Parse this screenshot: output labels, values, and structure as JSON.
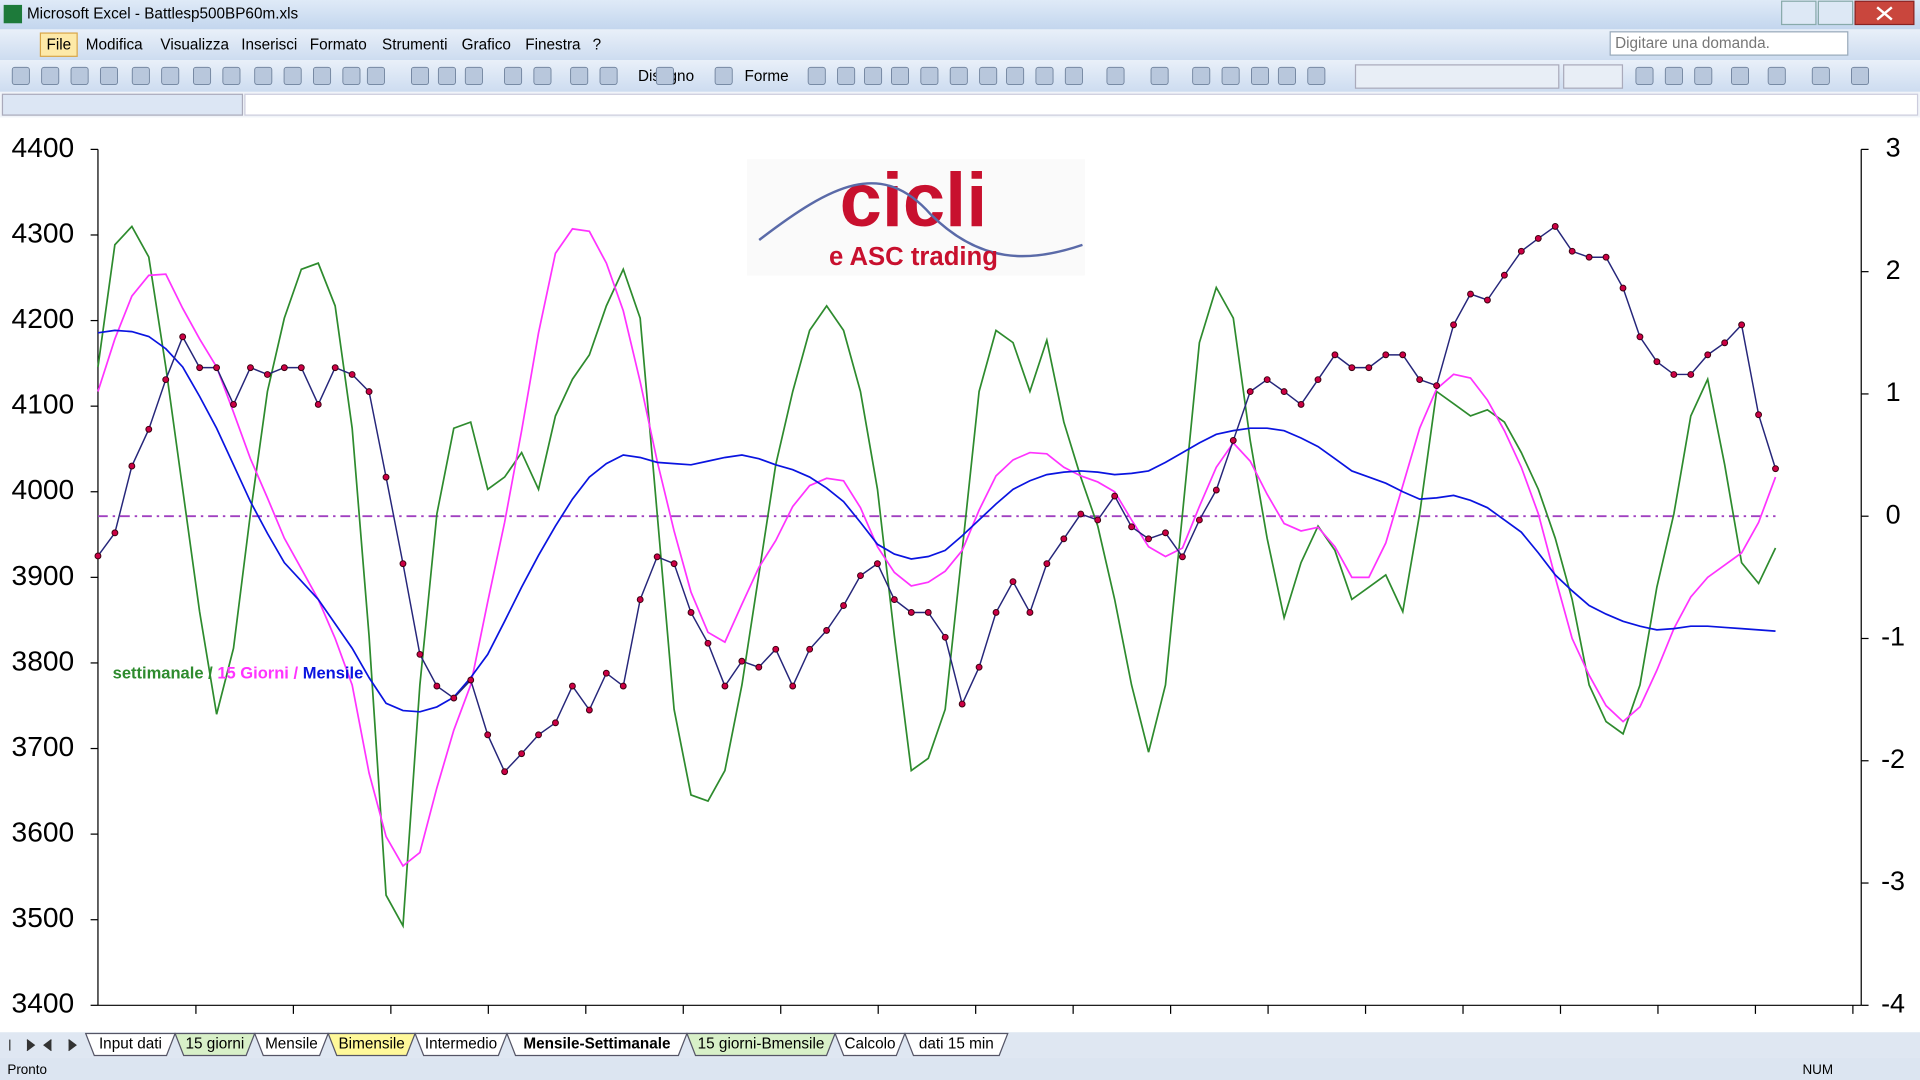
{
  "window": {
    "title": "Microsoft Excel - Battlesp500BP60m.xls"
  },
  "menu": [
    "File",
    "Modifica",
    "Visualizza",
    "Inserisci",
    "Formato",
    "Strumenti",
    "Grafico",
    "Finestra",
    "?"
  ],
  "help_box": "Digitare una domanda.",
  "toolbar": {
    "draw": "Disegno",
    "shapes": "Forme"
  },
  "logo": {
    "title": "cicli",
    "subtitle": "e ASC trading"
  },
  "chart_data": {
    "type": "line",
    "ylim": [
      3400,
      4400
    ],
    "yticks": [
      3400,
      3500,
      3600,
      3700,
      3800,
      3900,
      4000,
      4100,
      4200,
      4300,
      4400
    ],
    "y2lim": [
      -4,
      3
    ],
    "y2ticks": [
      -4,
      -3,
      -2,
      -1,
      0,
      1,
      2,
      3
    ],
    "zero_line": {
      "axis": "y2",
      "value": 0,
      "color": "#a040c0"
    },
    "legend_separator": " / ",
    "series": [
      {
        "name": "settimanale",
        "color": "#2e8b2e",
        "axis": "y2",
        "values": [
          1.22,
          2.22,
          2.37,
          2.12,
          1.22,
          0.22,
          -0.78,
          -1.62,
          -1.08,
          0.02,
          1.02,
          1.62,
          2.02,
          2.07,
          1.72,
          0.72,
          -0.98,
          -3.1,
          -3.35,
          -1.38,
          0.02,
          0.72,
          0.77,
          0.22,
          0.32,
          0.52,
          0.22,
          0.82,
          1.12,
          1.32,
          1.72,
          2.02,
          1.62,
          0.02,
          -1.58,
          -2.28,
          -2.33,
          -2.08,
          -1.38,
          -0.48,
          0.42,
          1.02,
          1.52,
          1.72,
          1.52,
          1.02,
          0.22,
          -0.98,
          -2.08,
          -1.98,
          -1.58,
          -0.28,
          1.02,
          1.52,
          1.42,
          1.02,
          1.44,
          0.77,
          0.32,
          -0.08,
          -0.68,
          -1.38,
          -1.93,
          -1.38,
          0.02,
          1.42,
          1.87,
          1.62,
          0.62,
          -0.18,
          -0.83,
          -0.38,
          -0.08,
          -0.28,
          -0.68,
          -0.58,
          -0.48,
          -0.78,
          0.02,
          1.02,
          0.92,
          0.82,
          0.87,
          0.77,
          0.52,
          0.22,
          -0.18,
          -0.68,
          -1.38,
          -1.68,
          -1.78,
          -1.38,
          -0.58,
          0.02,
          0.82,
          1.12,
          0.42,
          -0.38,
          -0.55,
          -0.26
        ]
      },
      {
        "name": "15 Giorni",
        "color": "#ff33ff",
        "axis": "y2",
        "values": [
          1.02,
          1.45,
          1.8,
          1.97,
          1.98,
          1.7,
          1.45,
          1.22,
          0.85,
          0.47,
          0.15,
          -0.18,
          -0.43,
          -0.68,
          -1.0,
          -1.38,
          -2.1,
          -2.62,
          -2.86,
          -2.75,
          -2.22,
          -1.75,
          -1.38,
          -0.7,
          -0.05,
          0.7,
          1.5,
          2.15,
          2.35,
          2.33,
          2.07,
          1.68,
          1.1,
          0.45,
          -0.12,
          -0.62,
          -0.95,
          -1.03,
          -0.72,
          -0.42,
          -0.2,
          0.08,
          0.25,
          0.31,
          0.29,
          0.07,
          -0.25,
          -0.46,
          -0.57,
          -0.54,
          -0.45,
          -0.28,
          0.05,
          0.33,
          0.46,
          0.52,
          0.51,
          0.4,
          0.33,
          0.28,
          0.2,
          -0.03,
          -0.25,
          -0.33,
          -0.26,
          0.08,
          0.4,
          0.6,
          0.45,
          0.18,
          -0.06,
          -0.12,
          -0.09,
          -0.25,
          -0.5,
          -0.5,
          -0.22,
          0.25,
          0.72,
          1.04,
          1.16,
          1.13,
          0.95,
          0.7,
          0.4,
          0.02,
          -0.5,
          -1.0,
          -1.3,
          -1.55,
          -1.68,
          -1.56,
          -1.26,
          -0.92,
          -0.66,
          -0.5,
          -0.4,
          -0.3,
          -0.05,
          0.32
        ]
      },
      {
        "name": "Mensile",
        "color": "#0a14e0",
        "axis": "y2",
        "values": [
          1.5,
          1.52,
          1.51,
          1.47,
          1.37,
          1.22,
          0.98,
          0.72,
          0.42,
          0.12,
          -0.14,
          -0.38,
          -0.53,
          -0.68,
          -0.88,
          -1.08,
          -1.32,
          -1.53,
          -1.59,
          -1.6,
          -1.56,
          -1.48,
          -1.32,
          -1.13,
          -0.86,
          -0.58,
          -0.32,
          -0.08,
          0.14,
          0.32,
          0.43,
          0.5,
          0.48,
          0.44,
          0.43,
          0.42,
          0.45,
          0.48,
          0.5,
          0.47,
          0.42,
          0.38,
          0.32,
          0.23,
          0.12,
          -0.05,
          -0.23,
          -0.31,
          -0.35,
          -0.33,
          -0.28,
          -0.16,
          -0.03,
          0.1,
          0.22,
          0.29,
          0.34,
          0.36,
          0.37,
          0.36,
          0.34,
          0.35,
          0.37,
          0.44,
          0.52,
          0.6,
          0.67,
          0.7,
          0.72,
          0.72,
          0.7,
          0.64,
          0.57,
          0.47,
          0.37,
          0.32,
          0.27,
          0.2,
          0.14,
          0.15,
          0.17,
          0.13,
          0.07,
          -0.03,
          -0.13,
          -0.3,
          -0.48,
          -0.61,
          -0.73,
          -0.8,
          -0.86,
          -0.9,
          -0.93,
          -0.92,
          -0.9,
          -0.9,
          -0.91,
          -0.92,
          -0.93,
          -0.94
        ]
      },
      {
        "color": "#26267a",
        "marker_color": "#cc0044",
        "markers": true,
        "values": [
          3925,
          3952,
          4030,
          4073,
          4131,
          4181,
          4145,
          4145,
          4102,
          4145,
          4137,
          4145,
          4145,
          4102,
          4145,
          4137,
          4117,
          4017,
          3916,
          3810,
          3773,
          3759,
          3780,
          3716,
          3673,
          3694,
          3716,
          3730,
          3773,
          3745,
          3788,
          3773,
          3874,
          3924,
          3916,
          3859,
          3823,
          3773,
          3802,
          3795,
          3816,
          3773,
          3816,
          3838,
          3867,
          3902,
          3916,
          3874,
          3859,
          3859,
          3830,
          3752,
          3795,
          3859,
          3895,
          3859,
          3916,
          3945,
          3974,
          3967,
          3995,
          3959,
          3945,
          3952,
          3924,
          3967,
          4002,
          4060,
          4117,
          4131,
          4117,
          4102,
          4131,
          4160,
          4145,
          4145,
          4160,
          4160,
          4131,
          4124,
          4195,
          4231,
          4224,
          4253,
          4281,
          4296,
          4310,
          4281,
          4274,
          4274,
          4238,
          4181,
          4152,
          4137,
          4137,
          4160,
          4174,
          4195,
          4090,
          4027
        ]
      }
    ]
  },
  "sheet_tabs": {
    "labels": [
      "Input dati",
      "15 giorni",
      "Mensile",
      "Bimensile",
      "Intermedio",
      "Mensile-Settimanale",
      "15 giorni-Bmensile",
      "Calcolo",
      "dati 15 min"
    ],
    "colors": [
      "#ffffff",
      "#d8f0c8",
      "#ffffff",
      "#fff89a",
      "#ffffff",
      "#ffffff",
      "#d8f0c8",
      "#ffffff",
      "#ffffff"
    ],
    "active": 5
  },
  "status": {
    "left": "Pronto",
    "right": "NUM"
  }
}
